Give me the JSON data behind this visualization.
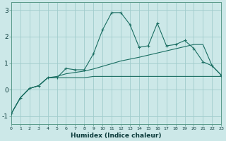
{
  "xlabel": "Humidex (Indice chaleur)",
  "x": [
    0,
    1,
    2,
    3,
    4,
    5,
    6,
    7,
    8,
    9,
    10,
    11,
    12,
    13,
    14,
    15,
    16,
    17,
    18,
    19,
    20,
    21,
    22,
    23
  ],
  "line1": [
    -0.9,
    -0.3,
    0.05,
    0.15,
    0.45,
    0.45,
    0.8,
    0.75,
    0.75,
    1.35,
    2.25,
    2.9,
    2.9,
    2.45,
    1.6,
    1.65,
    2.5,
    1.65,
    1.7,
    1.85,
    1.55,
    1.05,
    0.9,
    0.55
  ],
  "line2": [
    -0.9,
    -0.3,
    0.05,
    0.15,
    0.45,
    0.45,
    0.45,
    0.45,
    0.45,
    0.5,
    0.5,
    0.5,
    0.5,
    0.5,
    0.5,
    0.5,
    0.5,
    0.5,
    0.5,
    0.5,
    0.5,
    0.5,
    0.5,
    0.5
  ],
  "line3": [
    -0.9,
    -0.3,
    0.05,
    0.15,
    0.45,
    0.5,
    0.6,
    0.65,
    0.7,
    0.78,
    0.88,
    0.98,
    1.08,
    1.15,
    1.22,
    1.3,
    1.38,
    1.46,
    1.54,
    1.62,
    1.7,
    1.7,
    0.9,
    0.55
  ],
  "line_color": "#1a6e62",
  "bg_color": "#cce8e8",
  "grid_color": "#a0cccc",
  "ylim": [
    -1.3,
    3.3
  ],
  "xlim": [
    0,
    23
  ],
  "yticks": [
    -1,
    0,
    1,
    2,
    3
  ]
}
